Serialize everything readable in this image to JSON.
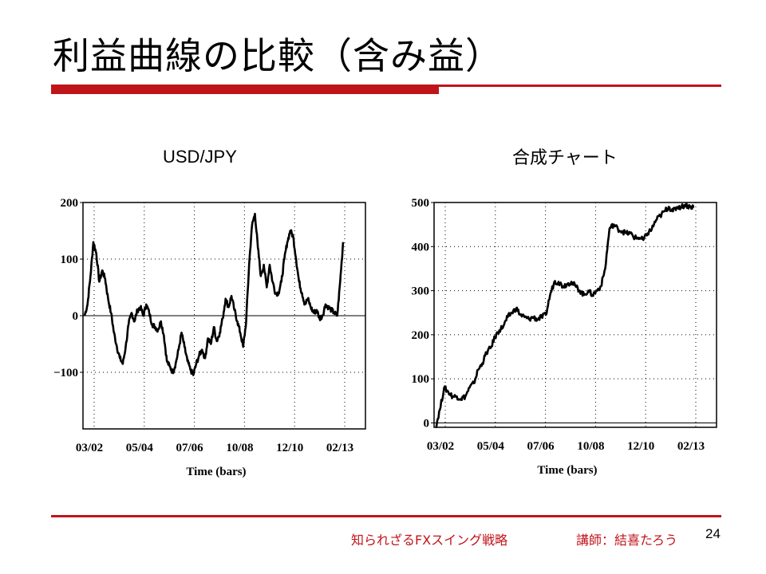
{
  "slide": {
    "title": "利益曲線の比較（含み益）",
    "footer_title": "知られざるFXスイング戦略",
    "footer_author": "講師：結喜たろう",
    "page_number": "24",
    "accent_color": "#c0141b"
  },
  "chart_data": [
    {
      "type": "line",
      "title": "USD/JPY",
      "xlabel": "Time (bars)",
      "ylabel": "",
      "x_ticks": [
        "03/02",
        "05/04",
        "07/06",
        "10/08",
        "12/10",
        "02/13"
      ],
      "y_ticks": [
        200,
        100,
        0,
        -100
      ],
      "y_tick_labels": [
        "200",
        "100",
        "0",
        "−100"
      ],
      "ylim": [
        -200,
        200
      ],
      "grid": true,
      "series": [
        {
          "values": [
            0,
            20,
            70,
            130,
            110,
            60,
            80,
            65,
            30,
            5,
            -30,
            -55,
            -75,
            -85,
            -55,
            -15,
            5,
            -10,
            10,
            15,
            0,
            20,
            5,
            -15,
            -20,
            -25,
            -10,
            -35,
            -80,
            -90,
            -100,
            -85,
            -60,
            -30,
            -55,
            -80,
            -95,
            -105,
            -85,
            -70,
            -60,
            -75,
            -40,
            -50,
            -20,
            -45,
            -30,
            -5,
            30,
            15,
            35,
            10,
            -10,
            -30,
            -55,
            -10,
            90,
            160,
            180,
            120,
            70,
            90,
            50,
            90,
            60,
            40,
            40,
            60,
            100,
            130,
            150,
            140,
            100,
            60,
            40,
            20,
            30,
            15,
            5,
            10,
            -5,
            0,
            20,
            15,
            10,
            5,
            0,
            60,
            130
          ]
        }
      ]
    },
    {
      "type": "line",
      "title": "合成チャート",
      "xlabel": "Time (bars)",
      "ylabel": "",
      "x_ticks": [
        "03/02",
        "05/04",
        "07/06",
        "10/08",
        "12/10",
        "02/13"
      ],
      "y_ticks": [
        500,
        400,
        300,
        200,
        100,
        0
      ],
      "y_tick_labels": [
        "500",
        "400",
        "300",
        "200",
        "100",
        "0"
      ],
      "ylim": [
        -10,
        500
      ],
      "grid": true,
      "series": [
        {
          "values": [
            -10,
            30,
            80,
            70,
            60,
            60,
            55,
            60,
            80,
            90,
            120,
            135,
            160,
            170,
            195,
            210,
            220,
            240,
            250,
            260,
            245,
            240,
            235,
            240,
            235,
            240,
            245,
            290,
            320,
            320,
            310,
            315,
            320,
            310,
            300,
            290,
            300,
            290,
            300,
            310,
            350,
            440,
            450,
            440,
            435,
            430,
            430,
            420,
            420,
            415,
            430,
            440,
            460,
            470,
            480,
            490,
            480,
            490,
            490,
            495,
            490,
            490
          ]
        }
      ]
    }
  ]
}
